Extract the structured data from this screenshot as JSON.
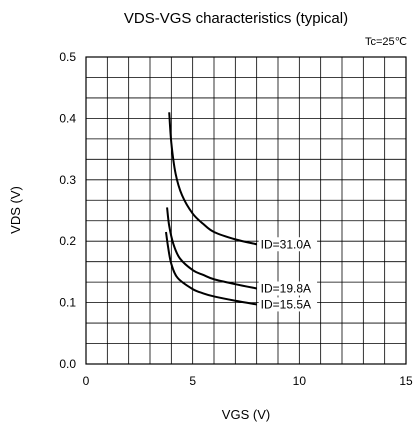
{
  "chart_data": {
    "type": "line",
    "title": "VDS-VGS characteristics (typical)",
    "condition": "Tc=25℃",
    "xlabel": "VGS (V)",
    "ylabel": "VDS (V)",
    "xlim": [
      0,
      15
    ],
    "ylim": [
      0,
      0.5
    ],
    "xticks": [
      0,
      5,
      10,
      15
    ],
    "xtick_labels": [
      "0",
      "5",
      "10",
      "15"
    ],
    "yticks": [
      0,
      0.1,
      0.2,
      0.3,
      0.4,
      0.5
    ],
    "ytick_labels": [
      "0.0",
      "0.1",
      "0.2",
      "0.3",
      "0.4",
      "0.5"
    ],
    "grid": true,
    "minor_gridlines_per_major": {
      "x": 5,
      "y": 3
    },
    "series": [
      {
        "name": "ID=31.0A",
        "x": [
          3.9,
          4.0,
          4.2,
          4.5,
          5.0,
          5.5,
          6.0,
          7.0,
          8.0
        ],
        "y": [
          0.41,
          0.36,
          0.31,
          0.275,
          0.245,
          0.228,
          0.215,
          0.203,
          0.195
        ]
      },
      {
        "name": "ID=19.8A",
        "x": [
          3.8,
          3.9,
          4.1,
          4.4,
          5.0,
          5.5,
          6.0,
          7.0,
          8.0
        ],
        "y": [
          0.255,
          0.225,
          0.195,
          0.172,
          0.153,
          0.145,
          0.138,
          0.13,
          0.123
        ]
      },
      {
        "name": "ID=15.5A",
        "x": [
          3.75,
          3.85,
          4.0,
          4.3,
          5.0,
          5.5,
          6.0,
          7.0,
          8.0
        ],
        "y": [
          0.215,
          0.19,
          0.163,
          0.14,
          0.122,
          0.115,
          0.11,
          0.103,
          0.097
        ]
      }
    ]
  }
}
